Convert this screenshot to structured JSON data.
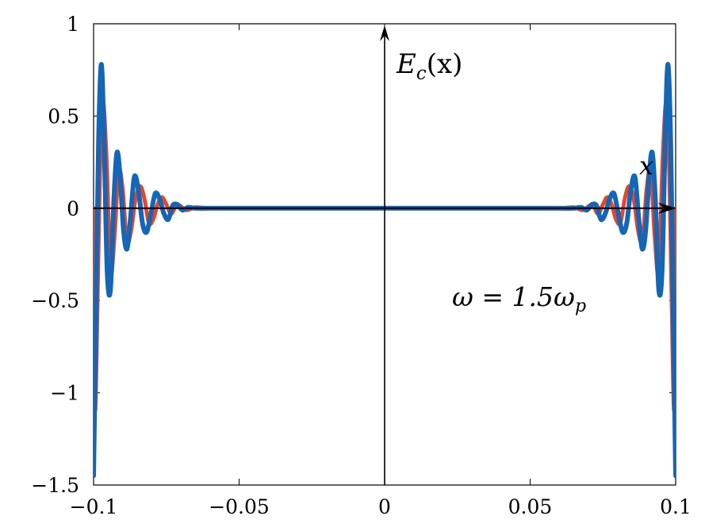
{
  "chart_data": {
    "type": "line",
    "title": "",
    "xlabel": "",
    "ylabel": "",
    "xlim": [
      -0.1,
      0.1
    ],
    "ylim": [
      -1.5,
      1
    ],
    "x_ticks": [
      -0.1,
      -0.05,
      0,
      0.05,
      0.1
    ],
    "x_tick_labels": [
      "−0.1",
      "−0.05",
      "0",
      "0.05",
      "0.1"
    ],
    "y_ticks": [
      -1.5,
      -1,
      -0.5,
      0,
      0.5,
      1
    ],
    "y_tick_labels": [
      "−1.5",
      "−1",
      "−0.5",
      "0",
      "0.5",
      "1"
    ],
    "grid": false,
    "legend": "none",
    "annotations": {
      "y_axis_label": {
        "base": "E",
        "sub": "c",
        "arg": "(x)"
      },
      "x_axis_label": "x",
      "frequency": {
        "base": "ω = 1.5ω",
        "sub": "p"
      }
    },
    "series": [
      {
        "color": "#e8452c",
        "line_width": 5,
        "x": [
          -0.1,
          -0.0995,
          -0.0987,
          -0.0978,
          -0.0968,
          -0.0955,
          -0.0942,
          -0.0928,
          -0.0914,
          -0.09,
          -0.0886,
          -0.0871,
          -0.0856,
          -0.084,
          -0.0825,
          -0.081,
          -0.0795,
          -0.078,
          -0.0765,
          -0.075,
          -0.0733,
          -0.0715,
          -0.07,
          -0.068,
          -0.065,
          -0.06,
          -0.05,
          -0.04,
          -0.03,
          -0.02,
          -0.01,
          0,
          0.01,
          0.02,
          0.03,
          0.04,
          0.05,
          0.06,
          0.065,
          0.068,
          0.07,
          0.0715,
          0.0733,
          0.075,
          0.0765,
          0.078,
          0.0795,
          0.081,
          0.0825,
          0.084,
          0.0856,
          0.0871,
          0.0886,
          0.09,
          0.0914,
          0.0928,
          0.0942,
          0.0955,
          0.0968,
          0.0978,
          0.0987,
          0.0995,
          0.1
        ],
        "y": [
          0,
          -1.08,
          -0.55,
          0.2,
          0.58,
          0.25,
          -0.35,
          -0.15,
          0.2,
          0.1,
          -0.18,
          -0.12,
          0.05,
          0.12,
          0.05,
          -0.08,
          -0.06,
          0.02,
          0.06,
          0.02,
          -0.03,
          0.02,
          0.01,
          -0.01,
          0.005,
          0,
          0,
          0,
          0,
          0,
          0,
          0,
          0,
          0,
          0,
          0,
          0,
          0,
          0.005,
          -0.01,
          0.01,
          0.02,
          -0.03,
          0.02,
          0.06,
          0.02,
          -0.06,
          -0.08,
          0.05,
          0.12,
          0.05,
          -0.12,
          -0.18,
          0.1,
          0.2,
          -0.15,
          -0.35,
          0.25,
          0.58,
          0.2,
          -0.55,
          -1.08,
          0
        ]
      },
      {
        "color": "#1466b6",
        "line_width": 6,
        "x": [
          -0.1,
          -0.0992,
          -0.0983,
          -0.0973,
          -0.0963,
          -0.0953,
          -0.0942,
          -0.0931,
          -0.092,
          -0.0909,
          -0.0897,
          -0.0885,
          -0.0873,
          -0.086,
          -0.0846,
          -0.0832,
          -0.0818,
          -0.0803,
          -0.0788,
          -0.0773,
          -0.0758,
          -0.0743,
          -0.0728,
          -0.0712,
          -0.0695,
          -0.0675,
          -0.065,
          -0.06,
          -0.05,
          -0.04,
          -0.03,
          -0.02,
          -0.01,
          0,
          0.01,
          0.02,
          0.03,
          0.04,
          0.05,
          0.06,
          0.065,
          0.0675,
          0.0695,
          0.0712,
          0.0728,
          0.0743,
          0.0758,
          0.0773,
          0.0788,
          0.0803,
          0.0818,
          0.0832,
          0.0846,
          0.086,
          0.0873,
          0.0885,
          0.0897,
          0.0909,
          0.092,
          0.0931,
          0.0942,
          0.0953,
          0.0963,
          0.0973,
          0.0983,
          0.0992,
          0.1
        ],
        "y": [
          -1.45,
          -0.6,
          0.35,
          0.78,
          0.3,
          -0.35,
          -0.44,
          0.02,
          0.3,
          0.18,
          -0.12,
          -0.22,
          -0.05,
          0.17,
          0.1,
          -0.08,
          -0.13,
          -0.03,
          0.08,
          0.05,
          -0.03,
          -0.06,
          0.015,
          0.02,
          -0.01,
          0.005,
          0,
          0,
          0,
          0,
          0,
          0,
          0,
          0,
          0,
          0,
          0,
          0,
          0,
          0,
          0,
          0.005,
          -0.01,
          0.02,
          0.015,
          -0.06,
          -0.03,
          0.05,
          0.08,
          -0.03,
          -0.13,
          -0.08,
          0.1,
          0.17,
          -0.05,
          -0.22,
          -0.12,
          0.18,
          0.3,
          0.02,
          -0.44,
          -0.35,
          0.3,
          0.78,
          0.35,
          -0.6,
          -1.45
        ]
      }
    ]
  }
}
